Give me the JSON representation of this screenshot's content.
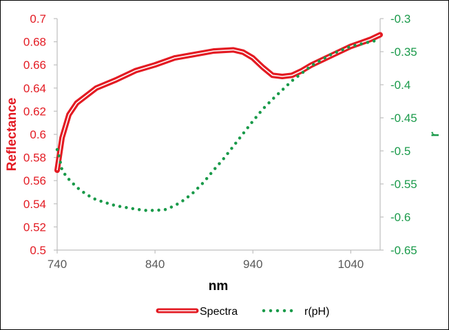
{
  "chart_data": {
    "type": "line",
    "xlabel": "nm",
    "ylabel_left": "Reflectance",
    "ylabel_right": "r",
    "xlim": [
      740,
      1070
    ],
    "ylim_left": [
      0.5,
      0.7
    ],
    "ylim_right": [
      -0.65,
      -0.3
    ],
    "x_ticks": [
      "740",
      "840",
      "940",
      "1040"
    ],
    "y_left_ticks": [
      "0.5",
      "0.52",
      "0.54",
      "0.56",
      "0.58",
      "0.6",
      "0.62",
      "0.64",
      "0.66",
      "0.68",
      "0.7"
    ],
    "y_right_ticks": [
      "-0.65",
      "-0.6",
      "-0.55",
      "-0.5",
      "-0.45",
      "-0.4",
      "-0.35",
      "-0.3"
    ],
    "grid": false,
    "legend_position": "bottom",
    "colors": {
      "spectra": "#e31b23",
      "r": "#1a9a4a",
      "axis": "#bfbfbf",
      "left_text": "#e31b23",
      "right_text": "#1a9a4a"
    },
    "series": [
      {
        "name": "Spectra",
        "axis": "left",
        "style": "double-line",
        "x": [
          740,
          745,
          752,
          760,
          780,
          800,
          820,
          840,
          860,
          880,
          900,
          920,
          930,
          940,
          950,
          960,
          970,
          980,
          990,
          1000,
          1020,
          1040,
          1050,
          1060,
          1070
        ],
        "y": [
          0.569,
          0.597,
          0.617,
          0.627,
          0.64,
          0.647,
          0.655,
          0.66,
          0.666,
          0.669,
          0.672,
          0.673,
          0.671,
          0.666,
          0.658,
          0.651,
          0.65,
          0.651,
          0.655,
          0.66,
          0.668,
          0.676,
          0.679,
          0.682,
          0.686
        ]
      },
      {
        "name": "r(pH)",
        "axis": "right",
        "style": "dotted",
        "x": [
          740,
          742,
          745,
          750,
          760,
          770,
          780,
          800,
          820,
          830,
          840,
          850,
          860,
          870,
          880,
          890,
          900,
          910,
          920,
          930,
          940,
          950,
          960,
          980,
          1000,
          1020,
          1040,
          1060,
          1070
        ],
        "y": [
          -0.498,
          -0.508,
          -0.529,
          -0.54,
          -0.555,
          -0.566,
          -0.574,
          -0.583,
          -0.588,
          -0.59,
          -0.59,
          -0.589,
          -0.583,
          -0.574,
          -0.562,
          -0.547,
          -0.529,
          -0.512,
          -0.493,
          -0.474,
          -0.455,
          -0.437,
          -0.422,
          -0.394,
          -0.371,
          -0.354,
          -0.342,
          -0.335,
          -0.332
        ]
      }
    ]
  }
}
